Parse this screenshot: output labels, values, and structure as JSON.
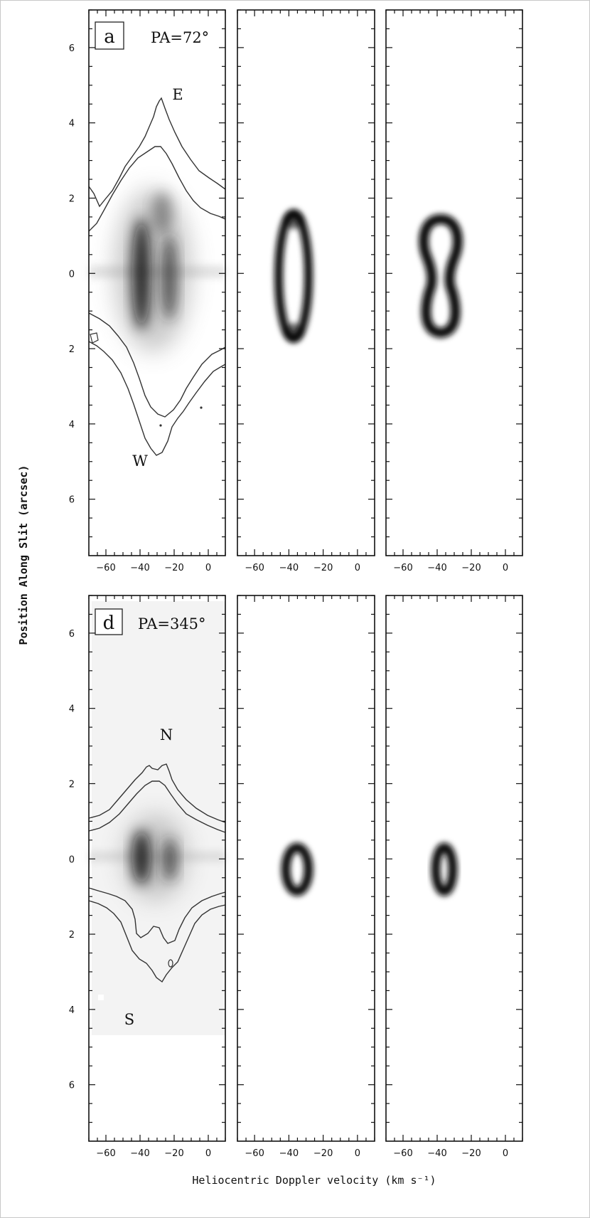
{
  "figure": {
    "ylabel": "Position Along Slit (arcsec)",
    "xlabel": "Heliocentric Doppler velocity (km s⁻¹)"
  },
  "chart_data": [
    {
      "type": "heatmap",
      "panel": "observed",
      "label": "a",
      "pa_label": "PA=72°",
      "annotations": [
        "E",
        "W"
      ],
      "xlim": [
        -70,
        10
      ],
      "ylim": [
        -7.5,
        7
      ],
      "x_ticks": [
        -60,
        -40,
        -20,
        0
      ],
      "x_tick_labels": [
        "−60",
        "−40",
        "−20",
        "0"
      ],
      "y_ticks": [
        6,
        4,
        2,
        0,
        -2,
        -4,
        -6
      ],
      "y_tick_labels": [
        "6",
        "4",
        "2",
        "0",
        "2",
        "4",
        "6"
      ],
      "emission_center": {
        "velocity": -33,
        "position": 0
      },
      "contours": true
    },
    {
      "type": "heatmap",
      "panel": "model ring",
      "xlim": [
        -70,
        10
      ],
      "ylim": [
        -7.5,
        7
      ],
      "x_ticks": [
        -60,
        -40,
        -20,
        0
      ],
      "x_tick_labels": [
        "−60",
        "−40",
        "−20",
        "0"
      ],
      "shape": "elliptical ring",
      "center": {
        "velocity": -32,
        "position": -0.1
      },
      "half_width_velocity": 8,
      "half_height_position": 1.8
    },
    {
      "type": "heatmap",
      "panel": "model waisted",
      "xlim": [
        -70,
        10
      ],
      "ylim": [
        -7.5,
        7
      ],
      "x_ticks": [
        -60,
        -40,
        -20,
        0
      ],
      "x_tick_labels": [
        "−60",
        "−40",
        "−20",
        "0"
      ],
      "shape": "peanut ring",
      "center": {
        "velocity": -32,
        "position": -0.1
      },
      "half_width_velocity": 9,
      "half_height_position": 1.8
    },
    {
      "type": "heatmap",
      "panel": "observed",
      "label": "d",
      "pa_label": "PA=345°",
      "annotations": [
        "N",
        "S"
      ],
      "xlim": [
        -70,
        10
      ],
      "ylim": [
        -7.5,
        7
      ],
      "x_ticks": [
        -60,
        -40,
        -20,
        0
      ],
      "x_tick_labels": [
        "−60",
        "−40",
        "−20",
        "0"
      ],
      "y_ticks": [
        6,
        4,
        2,
        0,
        -2,
        -4,
        -6
      ],
      "y_tick_labels": [
        "6",
        "4",
        "2",
        "0",
        "2",
        "4",
        "6"
      ],
      "emission_center": {
        "velocity": -33,
        "position": 0
      },
      "contours": true
    },
    {
      "type": "heatmap",
      "panel": "model ring",
      "xlim": [
        -70,
        10
      ],
      "ylim": [
        -7.5,
        7
      ],
      "x_ticks": [
        -60,
        -40,
        -20,
        0
      ],
      "x_tick_labels": [
        "−60",
        "−40",
        "−20",
        "0"
      ],
      "shape": "elliptical ring",
      "center": {
        "velocity": -32,
        "position": -0.35
      },
      "half_width_velocity": 6,
      "half_height_position": 0.8
    },
    {
      "type": "heatmap",
      "panel": "model ring",
      "xlim": [
        -70,
        10
      ],
      "ylim": [
        -7.5,
        7
      ],
      "x_ticks": [
        -60,
        -40,
        -20,
        0
      ],
      "x_tick_labels": [
        "−60",
        "−40",
        "−20",
        "0"
      ],
      "shape": "elliptical ring",
      "center": {
        "velocity": -32,
        "position": -0.35
      },
      "half_width_velocity": 5,
      "half_height_position": 0.8
    }
  ]
}
